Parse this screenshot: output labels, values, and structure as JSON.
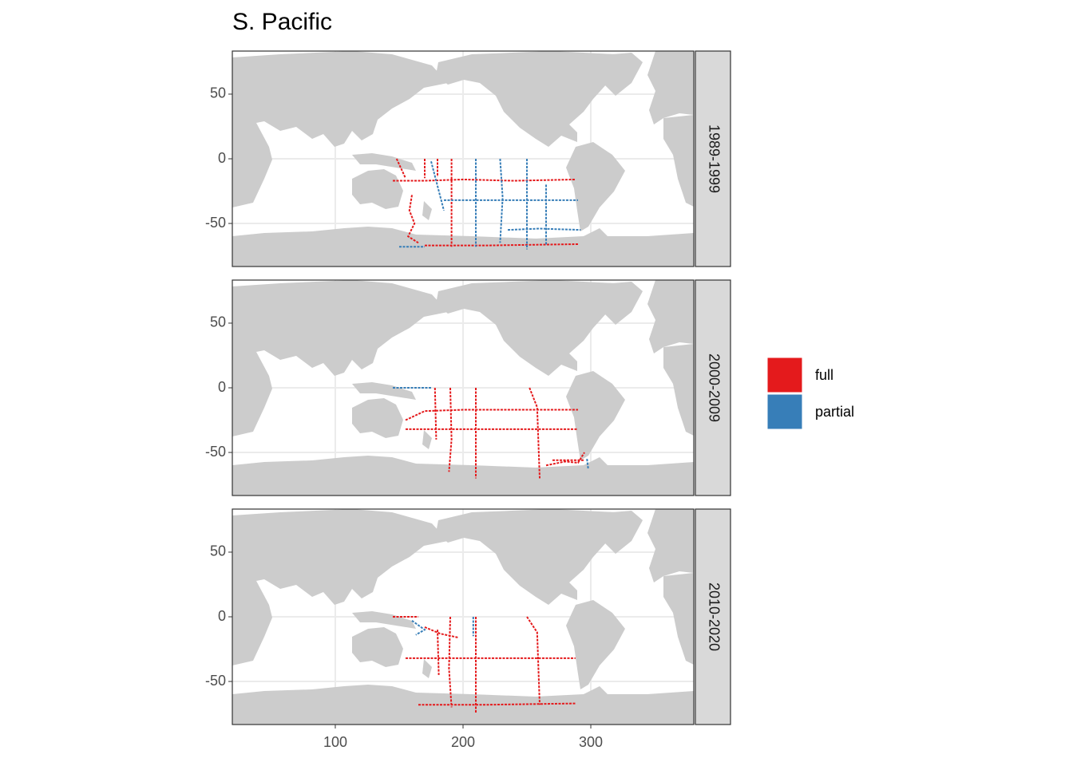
{
  "chart_data": {
    "type": "map",
    "title": "S. Pacific",
    "facets": [
      "1989-1999",
      "2000-2009",
      "2010-2020"
    ],
    "xlim": [
      19.4,
      380.6
    ],
    "xticks": [
      100,
      200,
      300
    ],
    "ylim": [
      -83.3,
      83.3
    ],
    "yticks": [
      -50,
      0,
      50
    ],
    "grid": true,
    "series": [
      {
        "name": "full",
        "color": "#e41a1c",
        "tracks": [
          [
            {
              "lon": [
                191,
                191
              ],
              "lat": [
                0,
                -68
              ]
            },
            {
              "lon": [
                145,
                170,
                200,
                240,
                288
              ],
              "lat": [
                -17,
                -17,
                -16,
                -17,
                -16
              ]
            },
            {
              "lon": [
                170,
                220,
                290
              ],
              "lat": [
                -67,
                -67,
                -66
              ]
            },
            {
              "lon": [
                160,
                158,
                162,
                157,
                165
              ],
              "lat": [
                -28,
                -40,
                -50,
                -60,
                -65
              ]
            },
            {
              "lon": [
                170,
                170
              ],
              "lat": [
                0,
                -15
              ]
            },
            {
              "lon": [
                180,
                180
              ],
              "lat": [
                0,
                -14
              ]
            },
            {
              "lon": [
                148,
                155
              ],
              "lat": [
                0,
                -15
              ]
            }
          ],
          [
            {
              "lon": [
                155,
                170,
                200,
                290
              ],
              "lat": [
                -25,
                -18,
                -17,
                -17
              ]
            },
            {
              "lon": [
                155,
                220,
                290
              ],
              "lat": [
                -32,
                -32,
                -32
              ]
            },
            {
              "lon": [
                190,
                191,
                189
              ],
              "lat": [
                0,
                -40,
                -65
              ]
            },
            {
              "lon": [
                210,
                210
              ],
              "lat": [
                0,
                -70
              ]
            },
            {
              "lon": [
                252,
                258,
                260
              ],
              "lat": [
                0,
                -15,
                -70
              ]
            },
            {
              "lon": [
                178,
                179
              ],
              "lat": [
                0,
                -40
              ]
            },
            {
              "lon": [
                265,
                280,
                290,
                295
              ],
              "lat": [
                -60,
                -57,
                -58,
                -50
              ]
            },
            {
              "lon": [
                270,
                295
              ],
              "lat": [
                -56,
                -56
              ]
            }
          ],
          [
            {
              "lon": [
                155,
                220,
                288
              ],
              "lat": [
                -32,
                -32,
                -32
              ]
            },
            {
              "lon": [
                210,
                210
              ],
              "lat": [
                0,
                -75
              ]
            },
            {
              "lon": [
                190,
                189,
                191
              ],
              "lat": [
                0,
                -40,
                -70
              ]
            },
            {
              "lon": [
                250,
                258,
                260
              ],
              "lat": [
                0,
                -12,
                -68
              ]
            },
            {
              "lon": [
                165,
                220,
                288
              ],
              "lat": [
                -68,
                -68,
                -67
              ]
            },
            {
              "lon": [
                180,
                181
              ],
              "lat": [
                -10,
                -45
              ]
            },
            {
              "lon": [
                170,
                182,
                196
              ],
              "lat": [
                -8,
                -13,
                -16
              ]
            },
            {
              "lon": [
                145,
                165
              ],
              "lat": [
                0,
                0
              ]
            }
          ]
        ]
      },
      {
        "name": "partial",
        "color": "#377eb8",
        "tracks": [
          [
            {
              "lon": [
                185,
                240,
                290
              ],
              "lat": [
                -32,
                -32,
                -32
              ]
            },
            {
              "lon": [
                210,
                210
              ],
              "lat": [
                0,
                -68
              ]
            },
            {
              "lon": [
                229,
                231,
                229
              ],
              "lat": [
                0,
                -30,
                -65
              ]
            },
            {
              "lon": [
                250,
                250
              ],
              "lat": [
                0,
                -70
              ]
            },
            {
              "lon": [
                265,
                265
              ],
              "lat": [
                -20,
                -67
              ]
            },
            {
              "lon": [
                235,
                260,
                292
              ],
              "lat": [
                -55,
                -54,
                -55
              ]
            },
            {
              "lon": [
                150,
                170
              ],
              "lat": [
                -68,
                -68
              ]
            },
            {
              "lon": [
                175,
                185
              ],
              "lat": [
                -2,
                -40
              ]
            }
          ],
          [
            {
              "lon": [
                145,
                175
              ],
              "lat": [
                0,
                0
              ]
            },
            {
              "lon": [
                297,
                298
              ],
              "lat": [
                -55,
                -63
              ]
            }
          ],
          [
            {
              "lon": [
                208,
                208
              ],
              "lat": [
                0,
                -15
              ]
            },
            {
              "lon": [
                160,
                170,
                163
              ],
              "lat": [
                -3,
                -10,
                -14
              ]
            }
          ]
        ]
      }
    ]
  }
}
